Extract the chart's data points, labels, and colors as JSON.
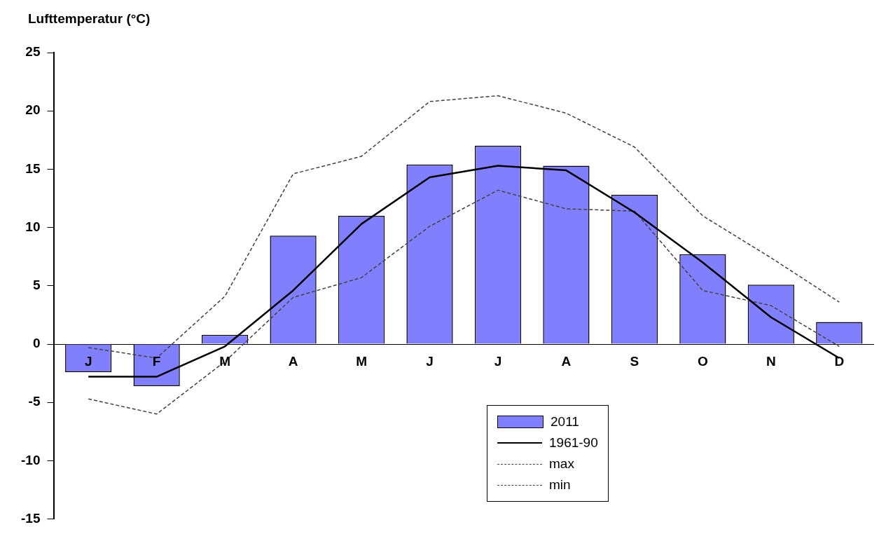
{
  "chart_data": {
    "type": "bar",
    "ylabel": "Lufttemperatur (°C)",
    "categories": [
      "J",
      "F",
      "M",
      "A",
      "M",
      "J",
      "J",
      "A",
      "S",
      "O",
      "N",
      "D"
    ],
    "series": [
      {
        "name": "2011",
        "color": "#8080ff",
        "values": [
          -2.4,
          -3.6,
          0.8,
          9.3,
          11.0,
          15.4,
          17.0,
          15.3,
          12.8,
          7.7,
          5.1,
          1.9
        ]
      },
      {
        "name": "1961-90",
        "type": "line",
        "color": "#000000",
        "line_style": "solid",
        "values": [
          -2.8,
          -2.8,
          -0.2,
          4.6,
          10.3,
          14.3,
          15.3,
          14.9,
          11.3,
          7.0,
          2.3,
          -1.2
        ]
      },
      {
        "name": "max",
        "type": "line",
        "color": "#404040",
        "line_style": "dashed",
        "values": [
          -0.3,
          -1.2,
          4.1,
          14.6,
          16.1,
          20.8,
          21.3,
          19.8,
          16.9,
          11.0,
          7.4,
          3.6
        ]
      },
      {
        "name": "min",
        "type": "line",
        "color": "#404040",
        "line_style": "dashed",
        "values": [
          -4.7,
          -6.0,
          -1.5,
          4.0,
          5.7,
          10.1,
          13.2,
          11.6,
          11.4,
          4.6,
          3.3,
          -0.2
        ]
      }
    ],
    "ylim": [
      -15,
      25
    ],
    "yticks": [
      -15,
      -10,
      -5,
      0,
      5,
      10,
      15,
      20,
      25
    ],
    "grid": false,
    "legend": "bottom right",
    "marker": "none"
  }
}
